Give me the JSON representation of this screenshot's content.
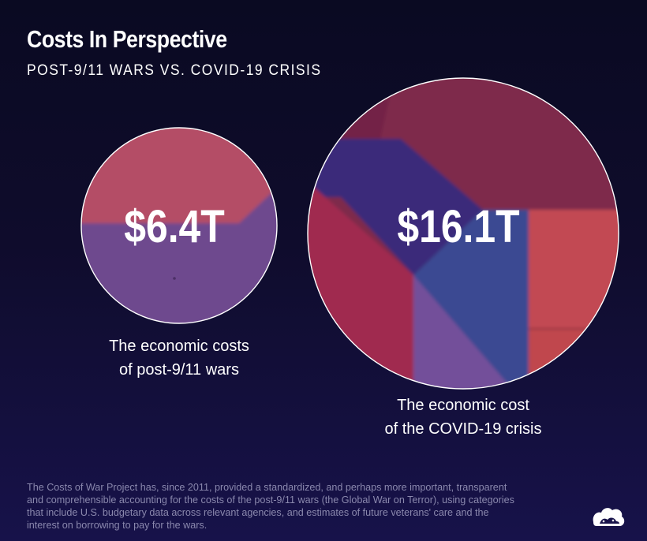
{
  "header": {
    "title": "Costs In Perspective",
    "subtitle": "POST-9/11 WARS VS. COVID-19 CRISIS"
  },
  "chart_data": {
    "type": "bubble",
    "title": "Costs In Perspective",
    "subtitle": "POST-9/11 WARS VS. COVID-19 CRISIS",
    "unit": "USD trillions",
    "items": [
      {
        "name": "post-9/11 wars",
        "value": 6.4,
        "value_label": "$6.4T",
        "caption": [
          "The economic costs",
          "of post-9/11 wars"
        ],
        "colors": [
          "#b44e66",
          "#6e4a8e"
        ]
      },
      {
        "name": "COVID-19 crisis",
        "value": 16.1,
        "value_label": "$16.1T",
        "caption": [
          "The economic cost",
          "of the COVID-19 crisis"
        ],
        "colors": [
          "#7e2a4c",
          "#3a2a7a",
          "#a02c50",
          "#3a4a92",
          "#73509a",
          "#c24a52"
        ]
      }
    ]
  },
  "footnote": {
    "lines": [
      "The Costs of War Project has, since 2011, provided a standardized, and perhaps more important, transparent",
      "and comprehensible accounting for the costs of the post-9/11 wars (the Global War on Terror), using categories",
      "that include U.S. budgetary data across relevant agencies, and estimates of future veterans' care and the",
      "interest on borrowing to pay for the wars."
    ]
  },
  "branding": {
    "logo_icon": "visual-capitalist-logo-icon"
  }
}
